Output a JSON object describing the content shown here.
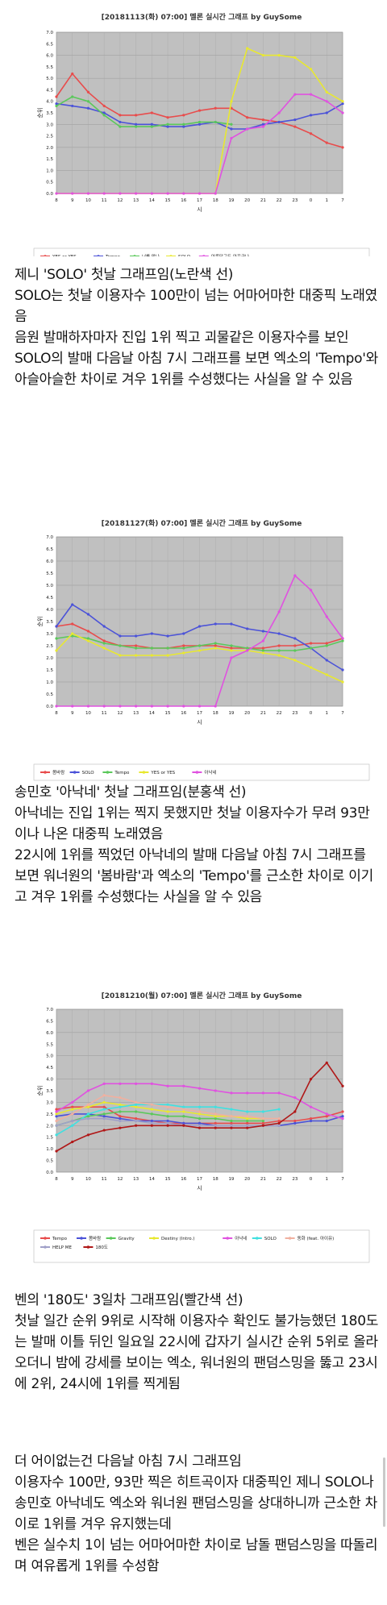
{
  "charts": [
    {
      "title": "[20181113(화) 07:00] 멜론 실시간 그래프 by GuySome",
      "ylabel": "순위",
      "xlabel": "시",
      "x_ticks": [
        "8",
        "9",
        "10",
        "11",
        "12",
        "13",
        "14",
        "15",
        "16",
        "17",
        "18",
        "19",
        "20",
        "21",
        "22",
        "23",
        "0",
        "1",
        "7"
      ],
      "y_ticks": [
        "0.0",
        "0.5",
        "1.0",
        "1.5",
        "2.0",
        "2.5",
        "3.0",
        "3.5",
        "4.0",
        "4.5",
        "5.0",
        "5.5",
        "6.0",
        "6.5",
        "7.0"
      ],
      "ylim": [
        0,
        7
      ],
      "legend_items": [
        {
          "name": "YES or YES",
          "color": "#e84c4c"
        },
        {
          "name": "Tempo",
          "color": "#4b52d8"
        },
        {
          "name": "너를 만나",
          "color": "#5ac85a"
        },
        {
          "name": "SOLO",
          "color": "#e8e830"
        },
        {
          "name": "아름답고도 아프구나",
          "color": "#e052e0"
        }
      ]
    },
    {
      "title": "[20181127(화) 07:00] 멜론 실시간 그래프 by GuySome",
      "ylabel": "순위",
      "xlabel": "시",
      "x_ticks": [
        "8",
        "9",
        "10",
        "11",
        "12",
        "13",
        "14",
        "15",
        "16",
        "17",
        "18",
        "19",
        "20",
        "21",
        "22",
        "23",
        "0",
        "1",
        "7"
      ],
      "y_ticks": [
        "0.0",
        "0.5",
        "1.0",
        "1.5",
        "2.0",
        "2.5",
        "3.0",
        "3.5",
        "4.0",
        "4.5",
        "5.0",
        "5.5",
        "6.0",
        "6.5",
        "7.0"
      ],
      "ylim": [
        0,
        7
      ],
      "legend_items": [
        {
          "name": "봄바람",
          "color": "#e84c4c"
        },
        {
          "name": "SOLO",
          "color": "#4b52d8"
        },
        {
          "name": "Tempo",
          "color": "#5ac85a"
        },
        {
          "name": "YES or YES",
          "color": "#e8e830"
        },
        {
          "name": "아낙네",
          "color": "#e052e0"
        }
      ]
    },
    {
      "title": "[20181210(월) 07:00] 멜론 실시간 그래프 by GuySome",
      "ylabel": "순위",
      "xlabel": "시",
      "x_ticks": [
        "8",
        "9",
        "10",
        "11",
        "12",
        "13",
        "14",
        "15",
        "16",
        "17",
        "18",
        "19",
        "20",
        "21",
        "22",
        "23",
        "0",
        "1",
        "7"
      ],
      "y_ticks": [
        "0.0",
        "0.5",
        "1.0",
        "1.5",
        "2.0",
        "2.5",
        "3.0",
        "3.5",
        "4.0",
        "4.5",
        "5.0",
        "5.5",
        "6.0",
        "6.5",
        "7.0"
      ],
      "ylim": [
        0,
        7
      ],
      "legend_items": [
        {
          "name": "Tempo",
          "color": "#e84c4c"
        },
        {
          "name": "봄바람",
          "color": "#4b52d8"
        },
        {
          "name": "Gravity",
          "color": "#5ac85a"
        },
        {
          "name": "Destiny (Intro.)",
          "color": "#e8e830"
        },
        {
          "name": "아낙네",
          "color": "#e052e0"
        },
        {
          "name": "SOLO",
          "color": "#40e0e0"
        },
        {
          "name": "동화 (feat. 아이유)",
          "color": "#f0b0a0"
        },
        {
          "name": "HELP ME",
          "color": "#a0a0c8"
        },
        {
          "name": "180도",
          "color": "#b01818"
        }
      ]
    }
  ],
  "captions": [
    [
      "제니 'SOLO' 첫날 그래프임(노란색 선)",
      "SOLO는 첫날 이용자수 100만이 넘는 어마어마한 대중픽 노래였음",
      "음원 발매하자마자 진입 1위 찍고 괴물같은 이용자수를 보인 SOLO의 발매 다음날 아침 7시 그래프를 보면 엑소의 'Tempo'와 아슬아슬한 차이로 겨우 1위를 수성했다는 사실을 알 수 있음"
    ],
    [
      "송민호 '아낙네' 첫날 그래프임(분홍색 선)",
      "아낙네는 진입 1위는 찍지 못했지만 첫날 이용자수가 무려 93만이나 나온 대중픽 노래였음",
      "22시에 1위를 찍었던 아낙네의 발매 다음날 아침 7시 그래프를 보면 워너원의 '봄바람'과 엑소의 'Tempo'를 근소한 차이로 이기고 겨우 1위를 수성했다는 사실을 알 수 있음"
    ],
    [
      "벤의 '180도' 3일차 그래프임(빨간색 선)",
      "첫날 일간 순위 9위로 시작해 이용자수 확인도 불가능했던 180도는 발매 이틀 뒤인 일요일 22시에 갑자기 실시간 순위 5위로 올라오더니 밤에 강세를 보이는 엑소, 워너원의 팬덤스밍을 뚫고 23시에 2위, 24시에 1위를 찍게됨"
    ],
    [
      "더 어이없는건 다음날 아침 7시 그래프임",
      "이용자수 100만, 93만 찍은 히트곡이자 대중픽인 제니 SOLO나 송민호 아낙네도 엑소와 워너원 팬덤스밍을 상대하니까 근소한 차이로 1위를 겨우 유지했는데",
      "벤은 실수치 1이 넘는 어마어마한 차이로 남돌 팬덤스밍을 따돌리며 여유롭게 1위를 수성함"
    ]
  ],
  "chart_data": [
    {
      "type": "line",
      "title": "[20181113(화) 07:00] 멜론 실시간 그래프 by GuySome",
      "xlabel": "시",
      "ylabel": "순위",
      "ylim": [
        0,
        7
      ],
      "grid": true,
      "legend": "bottom",
      "x": [
        "8",
        "9",
        "10",
        "11",
        "12",
        "13",
        "14",
        "15",
        "16",
        "17",
        "18",
        "19",
        "20",
        "21",
        "22",
        "23",
        "0",
        "1",
        "7"
      ],
      "series": [
        {
          "name": "YES or YES",
          "color": "#e84c4c",
          "values": [
            4.2,
            5.2,
            4.4,
            3.8,
            3.4,
            3.4,
            3.5,
            3.3,
            3.4,
            3.6,
            3.7,
            3.7,
            3.3,
            3.2,
            3.1,
            2.9,
            2.6,
            2.2,
            2.0
          ]
        },
        {
          "name": "Tempo",
          "color": "#4b52d8",
          "values": [
            3.9,
            3.8,
            3.7,
            3.5,
            3.1,
            3.0,
            3.0,
            2.9,
            2.9,
            3.0,
            3.1,
            2.8,
            2.8,
            3.0,
            3.1,
            3.2,
            3.4,
            3.5,
            3.9
          ]
        },
        {
          "name": "너를 만나",
          "color": "#5ac85a",
          "values": [
            3.8,
            4.2,
            4.0,
            3.4,
            2.9,
            2.9,
            2.9,
            3.0,
            3.0,
            3.1,
            3.1,
            3.0,
            null,
            null,
            null,
            null,
            null,
            null,
            null
          ]
        },
        {
          "name": "SOLO",
          "color": "#e8e830",
          "values": [
            0,
            0,
            0,
            0,
            0,
            0,
            0,
            0,
            0,
            0,
            0,
            4.0,
            6.3,
            6.0,
            6.0,
            5.9,
            5.4,
            4.4,
            4.0
          ]
        },
        {
          "name": "아름답고도 아프구나",
          "color": "#e052e0",
          "values": [
            0,
            0,
            0,
            0,
            0,
            0,
            0,
            0,
            0,
            0,
            0,
            2.4,
            2.8,
            2.9,
            3.5,
            4.3,
            4.3,
            4.0,
            3.5
          ]
        }
      ]
    },
    {
      "type": "line",
      "title": "[20181127(화) 07:00] 멜론 실시간 그래프 by GuySome",
      "xlabel": "시",
      "ylabel": "순위",
      "ylim": [
        0,
        7
      ],
      "grid": true,
      "legend": "bottom",
      "x": [
        "8",
        "9",
        "10",
        "11",
        "12",
        "13",
        "14",
        "15",
        "16",
        "17",
        "18",
        "19",
        "20",
        "21",
        "22",
        "23",
        "0",
        "1",
        "7"
      ],
      "series": [
        {
          "name": "봄바람",
          "color": "#e84c4c",
          "values": [
            3.3,
            3.4,
            3.1,
            2.7,
            2.5,
            2.5,
            2.4,
            2.4,
            2.5,
            2.5,
            2.5,
            2.4,
            2.4,
            2.4,
            2.5,
            2.5,
            2.6,
            2.6,
            2.8
          ]
        },
        {
          "name": "SOLO",
          "color": "#4b52d8",
          "values": [
            3.3,
            4.2,
            3.8,
            3.3,
            2.9,
            2.9,
            3.0,
            2.9,
            3.0,
            3.3,
            3.4,
            3.4,
            3.2,
            3.1,
            3.0,
            2.8,
            2.4,
            1.9,
            1.5
          ]
        },
        {
          "name": "Tempo",
          "color": "#5ac85a",
          "values": [
            2.8,
            2.9,
            2.8,
            2.6,
            2.5,
            2.4,
            2.4,
            2.4,
            2.4,
            2.5,
            2.6,
            2.5,
            2.4,
            2.3,
            2.3,
            2.3,
            2.4,
            2.5,
            2.7
          ]
        },
        {
          "name": "YES or YES",
          "color": "#e8e830",
          "values": [
            2.3,
            3.0,
            2.7,
            2.4,
            2.1,
            2.1,
            2.1,
            2.1,
            2.2,
            2.3,
            2.4,
            2.3,
            2.3,
            2.2,
            2.1,
            1.9,
            1.6,
            1.3,
            1.0
          ]
        },
        {
          "name": "아낙네",
          "color": "#e052e0",
          "values": [
            0,
            0,
            0,
            0,
            0,
            0,
            0,
            0,
            0,
            0,
            0,
            2.0,
            2.3,
            2.7,
            3.9,
            5.4,
            4.8,
            3.7,
            2.8
          ]
        }
      ]
    },
    {
      "type": "line",
      "title": "[20181210(월) 07:00] 멜론 실시간 그래프 by GuySome",
      "xlabel": "시",
      "ylabel": "순위",
      "ylim": [
        0,
        7
      ],
      "grid": true,
      "legend": "bottom",
      "x": [
        "8",
        "9",
        "10",
        "11",
        "12",
        "13",
        "14",
        "15",
        "16",
        "17",
        "18",
        "19",
        "20",
        "21",
        "22",
        "23",
        "0",
        "1",
        "7"
      ],
      "series": [
        {
          "name": "Tempo",
          "color": "#e84c4c",
          "values": [
            2.7,
            2.8,
            2.8,
            2.8,
            2.4,
            2.3,
            2.2,
            2.1,
            2.1,
            2.1,
            2.1,
            2.1,
            2.1,
            2.1,
            2.2,
            2.2,
            2.3,
            2.4,
            2.6
          ]
        },
        {
          "name": "봄바람",
          "color": "#4b52d8",
          "values": [
            2.4,
            2.5,
            2.5,
            2.4,
            2.3,
            2.2,
            2.2,
            2.2,
            2.1,
            2.1,
            2.0,
            2.0,
            2.0,
            2.0,
            2.0,
            2.1,
            2.2,
            2.2,
            2.4
          ]
        },
        {
          "name": "Gravity",
          "color": "#5ac85a",
          "values": [
            2.0,
            2.2,
            2.4,
            2.5,
            2.6,
            2.6,
            2.5,
            2.4,
            2.4,
            2.3,
            2.3,
            2.2,
            2.2,
            2.2,
            null,
            null,
            null,
            null,
            null
          ]
        },
        {
          "name": "Destiny (Intro.)",
          "color": "#e8e830",
          "values": [
            2.5,
            2.7,
            2.8,
            3.0,
            2.9,
            2.8,
            2.7,
            2.6,
            2.6,
            2.5,
            2.4,
            2.4,
            2.3,
            2.3,
            null,
            null,
            null,
            null,
            null
          ]
        },
        {
          "name": "아낙네",
          "color": "#e052e0",
          "values": [
            2.6,
            3.0,
            3.5,
            3.8,
            3.8,
            3.8,
            3.8,
            3.7,
            3.7,
            3.6,
            3.5,
            3.4,
            3.4,
            3.4,
            3.4,
            3.2,
            2.8,
            2.5,
            2.3
          ]
        },
        {
          "name": "SOLO",
          "color": "#40e0e0",
          "values": [
            1.6,
            2.0,
            2.5,
            2.7,
            2.8,
            2.9,
            2.9,
            2.9,
            2.8,
            2.8,
            2.8,
            2.7,
            2.6,
            2.6,
            2.7,
            null,
            null,
            null,
            null
          ]
        },
        {
          "name": "동화 (feat. 아이유)",
          "color": "#f0b0a0",
          "values": [
            2.2,
            2.5,
            2.9,
            3.3,
            3.2,
            3.0,
            2.9,
            2.8,
            2.7,
            2.6,
            2.5,
            2.4,
            2.4,
            2.3,
            2.3,
            null,
            null,
            null,
            null
          ]
        },
        {
          "name": "HELP ME",
          "color": "#a0a0c8",
          "values": [
            2.0,
            2.2,
            2.3,
            2.3,
            2.2,
            2.2,
            2.1,
            2.1,
            2.0,
            2.0,
            2.0,
            2.0,
            2.0,
            2.0,
            2.0,
            null,
            null,
            null,
            null
          ]
        },
        {
          "name": "180도",
          "color": "#b01818",
          "values": [
            0.9,
            1.3,
            1.6,
            1.8,
            1.9,
            2.0,
            2.0,
            2.0,
            2.0,
            1.9,
            1.9,
            1.9,
            1.9,
            2.0,
            2.1,
            2.6,
            4.0,
            4.7,
            3.7
          ]
        }
      ]
    }
  ]
}
